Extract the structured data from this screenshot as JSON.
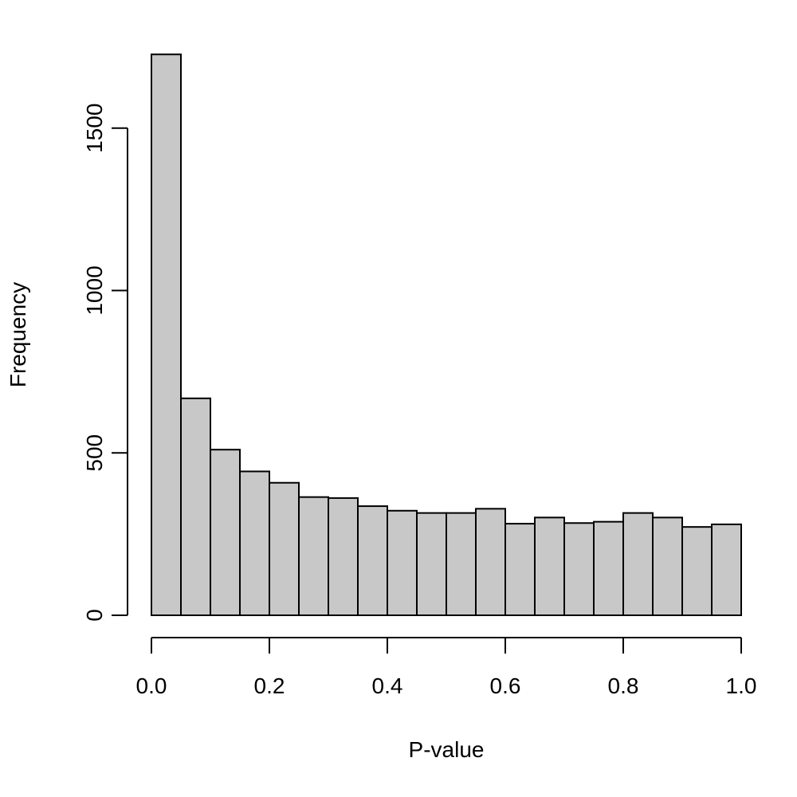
{
  "chart_data": {
    "type": "bar",
    "title": "",
    "xlabel": "P-value",
    "ylabel": "Frequency",
    "bin_edges": [
      0.0,
      0.05,
      0.1,
      0.15,
      0.2,
      0.25,
      0.3,
      0.35,
      0.4,
      0.45,
      0.5,
      0.55,
      0.6,
      0.65,
      0.7,
      0.75,
      0.8,
      0.85,
      0.9,
      0.95,
      1.0
    ],
    "values": [
      1727,
      668,
      510,
      443,
      408,
      364,
      361,
      336,
      322,
      315,
      315,
      328,
      282,
      301,
      284,
      288,
      315,
      301,
      272,
      280
    ],
    "xlim": [
      0.0,
      1.0
    ],
    "ylim": [
      0,
      1727
    ],
    "x_ticks": [
      0.0,
      0.2,
      0.4,
      0.6,
      0.8,
      1.0
    ],
    "x_tick_labels": [
      "0.0",
      "0.2",
      "0.4",
      "0.6",
      "0.8",
      "1.0"
    ],
    "y_ticks": [
      0,
      500,
      1000,
      1500
    ],
    "y_tick_labels": [
      "0",
      "500",
      "1000",
      "1500"
    ],
    "bar_color": "#c8c8c8",
    "grid": false,
    "legend": "none"
  }
}
